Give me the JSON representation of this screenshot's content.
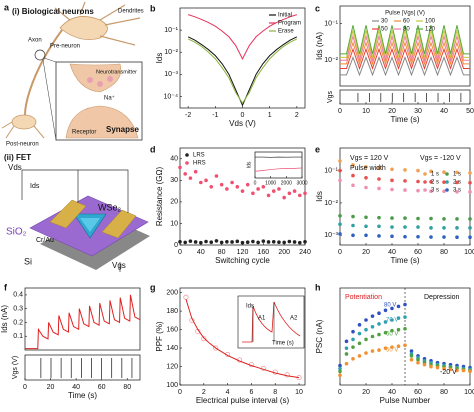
{
  "illustration": {
    "panel_label": "a",
    "labels": [
      "(i) Biological neurons",
      "Pre-neuron",
      "Dendrites",
      "Axon",
      "Neurotransmitter",
      "Post-neuron",
      "Receptor",
      "Synapse",
      "Na⁺",
      "(ii) FET",
      "Vds",
      "Ids",
      "Vgs",
      "SiO₂",
      "WSe₂",
      "Cr/Au",
      "Si"
    ]
  },
  "chart_data": [
    {
      "panel_label": "b",
      "type": "line",
      "xlabel": "Vds (V)",
      "ylabel": "Ids",
      "x": [
        -2,
        -1.75,
        -1.5,
        -1.25,
        -1,
        -0.75,
        -0.5,
        -0.25,
        0,
        0.25,
        0.5,
        0.75,
        1,
        1.25,
        1.5,
        1.75,
        2
      ],
      "xlim": [
        -2.3,
        2.3
      ],
      "xticks": [
        -2,
        -1,
        0,
        1,
        2
      ],
      "ylim": [
        3e-05,
        1
      ],
      "ylog": true,
      "yticks": [
        {
          "value": 0.1,
          "label": "10⁻¹"
        },
        {
          "value": 0.01,
          "label": "10⁻²"
        },
        {
          "value": 0.001,
          "label": "10⁻³"
        },
        {
          "value": 0.0001,
          "label": "10⁻⁴"
        }
      ],
      "legend": "upper right",
      "series": [
        {
          "name": "Initial",
          "color": "#111111",
          "values": [
            0.05,
            0.035,
            0.022,
            0.013,
            0.007,
            0.003,
            0.001,
            0.0002,
            4e-05,
            0.0002,
            0.001,
            0.003,
            0.007,
            0.013,
            0.022,
            0.035,
            0.05
          ]
        },
        {
          "name": "Program",
          "color": "#e8305a",
          "values": [
            0.5,
            0.4,
            0.3,
            0.22,
            0.15,
            0.09,
            0.05,
            0.02,
            0.005,
            0.02,
            0.05,
            0.09,
            0.15,
            0.22,
            0.3,
            0.4,
            0.5
          ]
        },
        {
          "name": "Erase",
          "color": "#8ab43a",
          "values": [
            0.04,
            0.028,
            0.018,
            0.01,
            0.005,
            0.002,
            0.0007,
            0.00015,
            5e-05,
            0.00015,
            0.0007,
            0.002,
            0.005,
            0.01,
            0.018,
            0.028,
            0.04
          ]
        }
      ]
    },
    {
      "panel_label": "c",
      "type": "line",
      "xlabel": "Time (s)",
      "ylabel": "Ids (nA)",
      "lower_ylabel": "Vgs",
      "x": [
        0,
        2.5,
        5,
        7.5,
        10,
        12.5,
        15,
        17.5,
        20,
        22.5,
        25,
        27.5,
        30,
        32.5,
        35,
        37.5,
        40,
        42.5,
        45,
        47.5,
        50
      ],
      "xlim": [
        0,
        50
      ],
      "xticks": [
        0,
        10,
        20,
        30,
        40,
        50
      ],
      "ylim": [
        0.002,
        0.3
      ],
      "ylog": true,
      "yticks": [
        {
          "value": 0.1,
          "label": "10⁻¹"
        },
        {
          "value": 0.01,
          "label": "10⁻²"
        }
      ],
      "legend": "upper center",
      "legend_title": "Pulse |Vgs| (V)",
      "legend_columns": 3,
      "series": [
        {
          "name": "30",
          "color": "#888888",
          "values": [
            0.004,
            0.004,
            0.012,
            0.004,
            0.012,
            0.004,
            0.012,
            0.004,
            0.012,
            0.004,
            0.012,
            0.004,
            0.012,
            0.004,
            0.012,
            0.004,
            0.012,
            0.004,
            0.012,
            0.004,
            0.004
          ]
        },
        {
          "name": "60",
          "color": "#f08c3a",
          "values": [
            0.008,
            0.008,
            0.03,
            0.008,
            0.03,
            0.008,
            0.03,
            0.008,
            0.03,
            0.008,
            0.03,
            0.008,
            0.03,
            0.008,
            0.03,
            0.008,
            0.03,
            0.008,
            0.03,
            0.008,
            0.008
          ]
        },
        {
          "name": "100",
          "color": "#c8c83a",
          "values": [
            0.012,
            0.012,
            0.065,
            0.012,
            0.065,
            0.012,
            0.065,
            0.012,
            0.065,
            0.012,
            0.065,
            0.012,
            0.065,
            0.012,
            0.065,
            0.012,
            0.065,
            0.012,
            0.065,
            0.012,
            0.012
          ]
        },
        {
          "name": "50",
          "color": "#e8403a",
          "values": [
            0.006,
            0.006,
            0.02,
            0.006,
            0.02,
            0.006,
            0.02,
            0.006,
            0.02,
            0.006,
            0.02,
            0.006,
            0.02,
            0.006,
            0.02,
            0.006,
            0.02,
            0.006,
            0.02,
            0.006,
            0.006
          ]
        },
        {
          "name": "80",
          "color": "#f07aa0",
          "values": [
            0.01,
            0.01,
            0.045,
            0.01,
            0.045,
            0.01,
            0.045,
            0.01,
            0.045,
            0.01,
            0.045,
            0.01,
            0.045,
            0.01,
            0.045,
            0.01,
            0.045,
            0.01,
            0.045,
            0.01,
            0.01
          ]
        },
        {
          "name": "120",
          "color": "#5aa83a",
          "values": [
            0.015,
            0.015,
            0.09,
            0.015,
            0.09,
            0.015,
            0.09,
            0.015,
            0.09,
            0.015,
            0.09,
            0.015,
            0.09,
            0.015,
            0.09,
            0.015,
            0.09,
            0.015,
            0.09,
            0.015,
            0.015
          ]
        }
      ]
    },
    {
      "panel_label": "d",
      "type": "scatter",
      "xlabel": "Switching cycle",
      "ylabel": "Resistance (GΩ)",
      "x": [
        0,
        10,
        20,
        30,
        40,
        50,
        60,
        70,
        80,
        90,
        100,
        110,
        120,
        130,
        140,
        150,
        160,
        170,
        180,
        190,
        200,
        210,
        220,
        230,
        240
      ],
      "xlim": [
        0,
        240
      ],
      "xticks": [
        0,
        40,
        80,
        120,
        160,
        200,
        240
      ],
      "ylim": [
        0,
        45
      ],
      "yticks": [
        0,
        10,
        20,
        30,
        40
      ],
      "legend": "upper left",
      "series": [
        {
          "name": "LRS",
          "color": "#222222",
          "values": [
            1.5,
            1.2,
            1.8,
            1.4,
            1.1,
            1.6,
            1.3,
            1.9,
            1.2,
            1.5,
            1.4,
            1.7,
            1.1,
            1.3,
            1.6,
            1.2,
            1.8,
            1.4,
            1.5,
            1.3,
            1.2,
            1.6,
            1.4,
            1.1,
            1.5
          ]
        },
        {
          "name": "HRS",
          "color": "#f05070",
          "values": [
            36,
            33,
            31,
            34,
            29,
            30,
            27,
            32,
            28,
            26,
            29,
            27,
            25,
            28,
            24,
            26,
            27,
            23,
            25,
            26,
            22,
            24,
            25,
            23,
            24
          ]
        }
      ]
    },
    {
      "type": "line",
      "ylabel": "Ids",
      "x": [
        0,
        500,
        1000,
        1500,
        2000,
        2500,
        3000
      ],
      "xlim": [
        0,
        3000
      ],
      "xticks": [
        0,
        1000,
        2000,
        3000
      ],
      "ylim": [
        0.002,
        1
      ],
      "ylog": true,
      "series": [
        {
          "color": "#222222",
          "values": [
            0.3,
            0.3,
            0.28,
            0.3,
            0.29,
            0.3,
            0.3
          ]
        },
        {
          "color": "#f05070",
          "values": [
            0.01,
            0.012,
            0.015,
            0.018,
            0.02,
            0.02,
            0.022
          ]
        }
      ]
    },
    {
      "panel_label": "e",
      "type": "scatter",
      "xlabel": "Time (s)",
      "ylabel": "Ids",
      "x": [
        0,
        10,
        20,
        30,
        40,
        50,
        60,
        70,
        80,
        90,
        100
      ],
      "xlim": [
        0,
        100
      ],
      "xticks": [
        0,
        20,
        40,
        60,
        80,
        100
      ],
      "ylim": [
        0.0005,
        0.5
      ],
      "ylog": true,
      "yticks": [
        {
          "value": 0.1,
          "label": "10⁻¹"
        },
        {
          "value": 0.01,
          "label": "10⁻²"
        },
        {
          "value": 0.001,
          "label": "10⁻³"
        }
      ],
      "annotations": [
        "Vgs = 120 V",
        "Vgs = -120 V",
        "Pulse width"
      ],
      "legend": "upper right",
      "legend_columns": 2,
      "series": [
        {
          "name": "1 s",
          "color": "#f0a050",
          "values": [
            0.2,
            0.15,
            0.13,
            0.12,
            0.11,
            0.105,
            0.1,
            0.095,
            0.09,
            0.088,
            0.085
          ]
        },
        {
          "name": "1 s",
          "color": "#4a9a4a",
          "values": [
            0.004,
            0.0038,
            0.0036,
            0.0035,
            0.0034,
            0.0034,
            0.0033,
            0.0033,
            0.0032,
            0.0032,
            0.0032
          ]
        },
        {
          "name": "2 s",
          "color": "#e85050",
          "values": [
            0.1,
            0.07,
            0.06,
            0.055,
            0.05,
            0.048,
            0.046,
            0.045,
            0.044,
            0.043,
            0.042
          ]
        },
        {
          "name": "2 s",
          "color": "#30a0a0",
          "values": [
            0.0022,
            0.002,
            0.0019,
            0.0019,
            0.0018,
            0.0018,
            0.0018,
            0.0017,
            0.0017,
            0.0017,
            0.0017
          ]
        },
        {
          "name": "3 s",
          "color": "#f090b0",
          "values": [
            0.05,
            0.035,
            0.03,
            0.028,
            0.026,
            0.025,
            0.024,
            0.023,
            0.023,
            0.022,
            0.022
          ]
        },
        {
          "name": "3 s",
          "color": "#3060c0",
          "values": [
            0.0011,
            0.001,
            0.001,
            0.00095,
            0.00093,
            0.0009,
            0.0009,
            0.00088,
            0.00088,
            0.00087,
            0.00087
          ]
        }
      ]
    },
    {
      "panel_label": "f",
      "type": "line",
      "xlabel": "Time (s)",
      "ylabel": "Ids (nA)",
      "lower_ylabel": "Vgs (V)",
      "x": [
        0,
        10,
        10.5,
        14,
        18,
        18.5,
        22,
        26,
        26.5,
        30,
        34,
        34.5,
        38,
        42,
        42.5,
        46,
        50,
        50.5,
        54,
        58,
        58.5,
        62,
        66,
        66.5,
        70,
        74,
        74.5,
        78,
        82,
        82.5,
        86,
        90
      ],
      "xlim": [
        0,
        90
      ],
      "xticks": [
        0,
        20,
        40,
        60,
        80
      ],
      "ylim": [
        0,
        0.45
      ],
      "yticks": [
        0.1,
        0.2,
        0.3,
        0.4
      ],
      "series": [
        {
          "color": "#e02020",
          "values": [
            0.01,
            0.01,
            0.15,
            0.1,
            0.08,
            0.2,
            0.13,
            0.11,
            0.25,
            0.15,
            0.13,
            0.27,
            0.17,
            0.15,
            0.3,
            0.19,
            0.17,
            0.32,
            0.2,
            0.18,
            0.34,
            0.21,
            0.19,
            0.36,
            0.22,
            0.2,
            0.38,
            0.23,
            0.21,
            0.4,
            0.24,
            0.22
          ]
        }
      ]
    },
    {
      "panel_label": "g",
      "type": "scatter",
      "xlabel": "Electrical pulse interval (s)",
      "ylabel": "PPF (%)",
      "x": [
        0.5,
        1,
        1.5,
        2,
        3,
        4,
        5,
        6,
        7,
        8,
        9,
        10
      ],
      "xlim": [
        0,
        10.5
      ],
      "xticks": [
        0,
        2,
        4,
        6,
        8,
        10
      ],
      "ylim": [
        100,
        205
      ],
      "yticks": [
        100,
        120,
        140,
        160,
        180,
        200
      ],
      "annotations": [
        "A1",
        "A2",
        "Ids",
        "Time (s)"
      ],
      "series": [
        {
          "color": "#f08080",
          "values": [
            195,
            170,
            158,
            150,
            140,
            133,
            127,
            122,
            118,
            114,
            111,
            108
          ]
        },
        {
          "color": "#e02020",
          "style": "line",
          "x": [
            0.5,
            1,
            1.5,
            2,
            2.5,
            3,
            4,
            5,
            6,
            7,
            8,
            9,
            10
          ],
          "values": [
            193,
            172,
            160,
            151,
            145,
            140,
            132,
            126,
            121,
            117,
            113,
            110,
            108
          ]
        }
      ]
    },
    {
      "panel_label": "h",
      "type": "scatter",
      "xlabel": "Pulse Number",
      "ylabel": "PSC (nA)",
      "x": [
        0,
        5,
        10,
        15,
        20,
        25,
        30,
        35,
        40,
        45,
        50,
        55,
        60,
        65,
        70,
        75,
        80,
        85,
        90,
        95,
        100
      ],
      "xlim": [
        0,
        100
      ],
      "xticks": [
        0,
        20,
        40,
        60,
        80,
        100
      ],
      "ylim": [
        0,
        1
      ],
      "annotations": [
        "Potentiation",
        "Depression",
        "-20 V"
      ],
      "series": [
        {
          "name": "80 V",
          "color": "#3050c0",
          "values": [
            0.2,
            0.45,
            0.55,
            0.62,
            0.67,
            0.71,
            0.74,
            0.77,
            0.79,
            0.81,
            0.83,
            0.35,
            0.3,
            0.27,
            0.25,
            0.23,
            0.22,
            0.21,
            0.2,
            0.19,
            0.18
          ]
        },
        {
          "name": "70 V",
          "color": "#30a0b0",
          "values": [
            0.17,
            0.38,
            0.47,
            0.53,
            0.57,
            0.6,
            0.63,
            0.65,
            0.67,
            0.69,
            0.7,
            0.32,
            0.28,
            0.25,
            0.23,
            0.21,
            0.2,
            0.19,
            0.18,
            0.17,
            0.16
          ]
        },
        {
          "name": "60 V",
          "color": "#50a040",
          "values": [
            0.14,
            0.32,
            0.39,
            0.43,
            0.47,
            0.5,
            0.52,
            0.54,
            0.56,
            0.57,
            0.58,
            0.3,
            0.26,
            0.23,
            0.21,
            0.2,
            0.19,
            0.18,
            0.17,
            0.16,
            0.15
          ]
        },
        {
          "name": "50 V",
          "color": "#f09030",
          "values": [
            0.1,
            0.22,
            0.27,
            0.3,
            0.33,
            0.35,
            0.36,
            0.38,
            0.39,
            0.4,
            0.41,
            0.26,
            0.23,
            0.21,
            0.19,
            0.18,
            0.17,
            0.16,
            0.15,
            0.15,
            0.14
          ]
        }
      ]
    }
  ]
}
